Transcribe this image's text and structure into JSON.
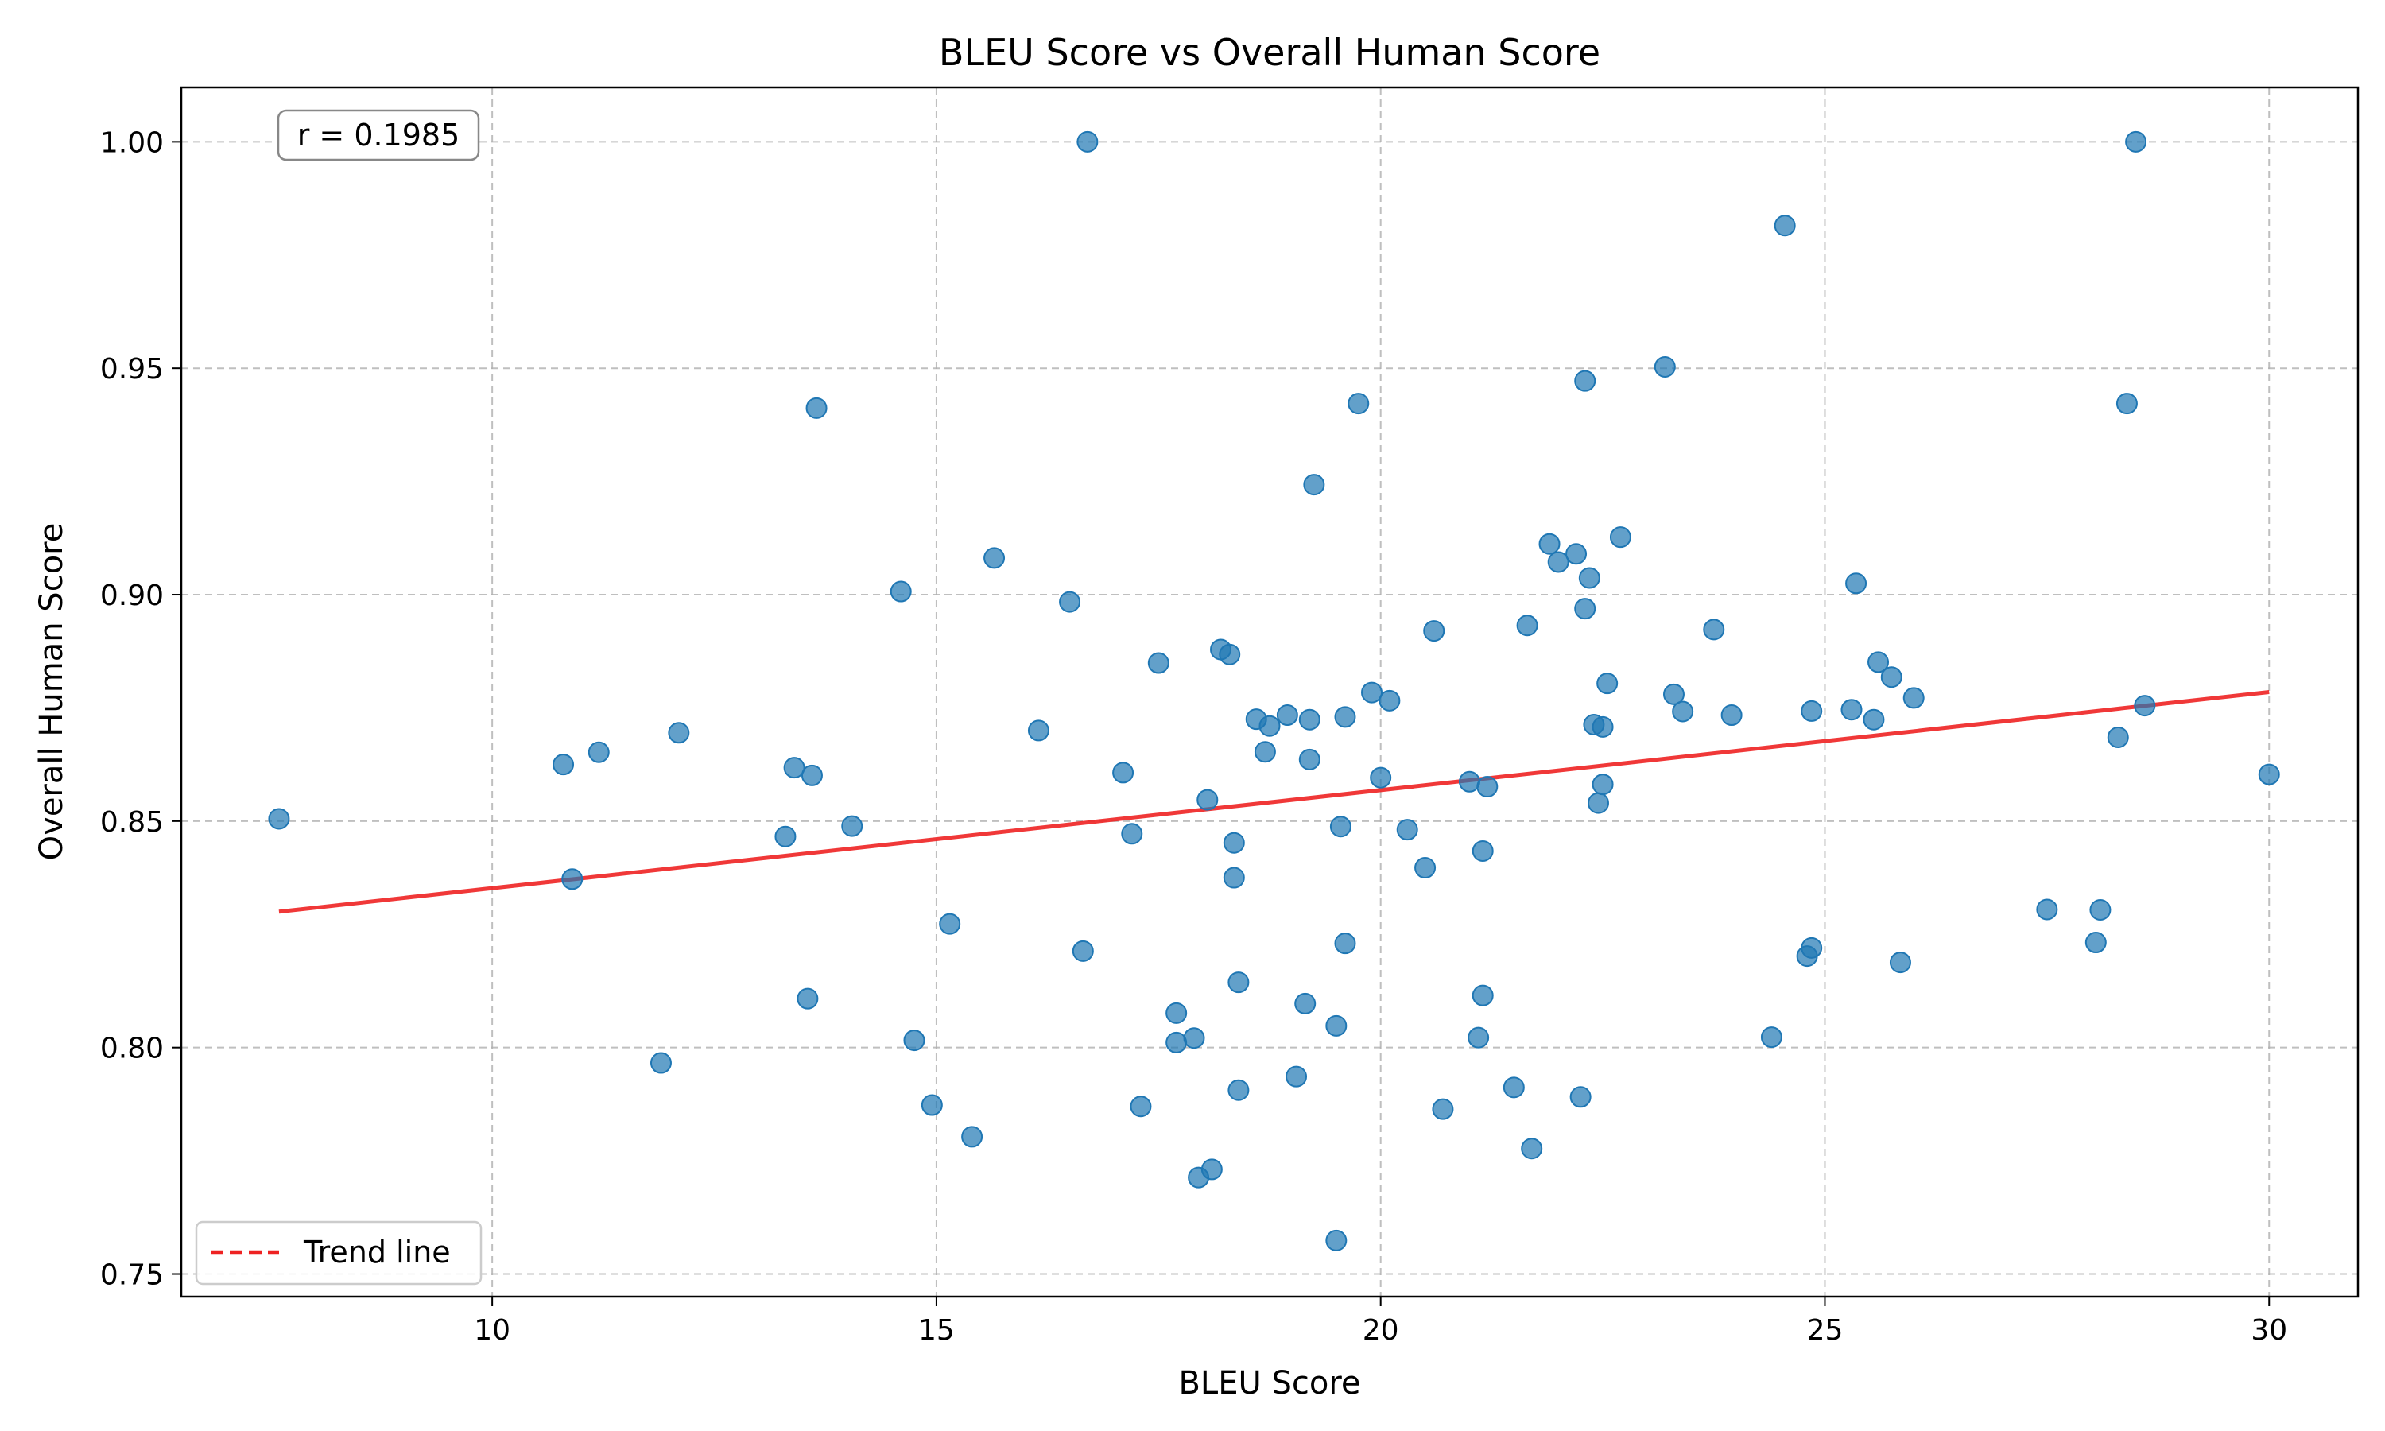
{
  "chart_data": {
    "type": "scatter",
    "title": "BLEU Score vs Overall Human Score",
    "xlabel": "BLEU Score",
    "ylabel": "Overall Human Score",
    "xlim": [
      6.5,
      31.0
    ],
    "ylim": [
      0.745,
      1.012
    ],
    "xticks": [
      10,
      15,
      20,
      25,
      30
    ],
    "xtick_labels": [
      "10",
      "15",
      "20",
      "25",
      "30"
    ],
    "yticks": [
      0.75,
      0.8,
      0.85,
      0.9,
      0.95,
      1.0
    ],
    "ytick_labels": [
      "0.75",
      "0.80",
      "0.85",
      "0.90",
      "0.95",
      "1.00"
    ],
    "grid": true,
    "legend": {
      "placement": "lower-left",
      "entries": [
        "Trend line"
      ]
    },
    "annotation": {
      "text": "r = 0.1985",
      "placement": "top-left"
    },
    "colors": {
      "points": "#1f77b4",
      "trend": "#ee2222",
      "grid": "#b0b0b0"
    },
    "trend_line": {
      "x": [
        7.6,
        30.0
      ],
      "y": [
        0.83,
        0.8785
      ]
    },
    "series": [
      {
        "x": [
          7.6,
          10.8,
          10.9,
          11.2,
          11.9,
          12.1,
          13.3,
          13.4,
          13.55,
          13.6,
          13.65,
          14.05,
          14.6,
          14.75,
          14.95,
          15.15,
          15.4,
          15.65,
          16.15,
          16.5,
          16.65,
          16.7,
          17.1,
          17.2,
          17.3,
          17.5,
          17.7,
          17.7,
          17.9,
          17.95,
          18.05,
          18.1,
          18.2,
          18.3,
          18.35,
          18.35,
          18.4,
          18.4,
          18.6,
          18.7,
          18.75,
          18.95,
          19.05,
          19.15,
          19.2,
          19.2,
          19.25,
          19.5,
          19.5,
          19.55,
          19.6,
          19.6,
          19.75,
          19.9,
          20.0,
          20.1,
          20.3,
          20.5,
          20.6,
          20.7,
          21.0,
          21.1,
          21.15,
          21.15,
          21.2,
          21.5,
          21.65,
          21.7,
          21.9,
          22.0,
          22.2,
          22.25,
          22.3,
          22.3,
          22.35,
          22.4,
          22.45,
          22.5,
          22.5,
          22.55,
          22.7,
          23.2,
          23.3,
          23.4,
          23.75,
          23.95,
          24.4,
          24.55,
          24.8,
          24.85,
          24.85,
          25.3,
          25.35,
          25.55,
          25.6,
          25.75,
          25.85,
          26.0,
          27.5,
          28.05,
          28.1,
          28.3,
          28.4,
          28.5,
          28.6,
          30.0
        ],
        "y": [
          0.8505,
          0.8625,
          0.8372,
          0.8652,
          0.7966,
          0.8695,
          0.8466,
          0.8618,
          0.8108,
          0.8601,
          0.9412,
          0.8489,
          0.9007,
          0.8016,
          0.7873,
          0.8273,
          0.7803,
          0.9081,
          0.87,
          0.8984,
          0.8213,
          1.0,
          0.8607,
          0.8472,
          0.787,
          0.8849,
          0.8076,
          0.8011,
          0.8021,
          0.7713,
          0.8547,
          0.7731,
          0.8879,
          0.8868,
          0.8375,
          0.8452,
          0.8144,
          0.7906,
          0.8725,
          0.8653,
          0.871,
          0.8734,
          0.7936,
          0.8097,
          0.8724,
          0.8636,
          0.9243,
          0.7574,
          0.8048,
          0.8488,
          0.823,
          0.873,
          0.9422,
          0.8784,
          0.8596,
          0.8766,
          0.8481,
          0.8397,
          0.892,
          0.7864,
          0.8587,
          0.8022,
          0.8434,
          0.8115,
          0.8576,
          0.7912,
          0.8932,
          0.7777,
          0.9112,
          0.9072,
          0.909,
          0.7891,
          0.9472,
          0.8969,
          0.9037,
          0.8713,
          0.854,
          0.8581,
          0.8708,
          0.8804,
          0.9127,
          0.9503,
          0.878,
          0.8742,
          0.8923,
          0.8734,
          0.8023,
          0.9815,
          0.8202,
          0.822,
          0.8743,
          0.8746,
          0.9025,
          0.8724,
          0.8851,
          0.8818,
          0.8188,
          0.8772,
          0.8305,
          0.8232,
          0.8304,
          0.8685,
          0.9422,
          1.0,
          0.8755,
          0.8603
        ]
      }
    ]
  }
}
